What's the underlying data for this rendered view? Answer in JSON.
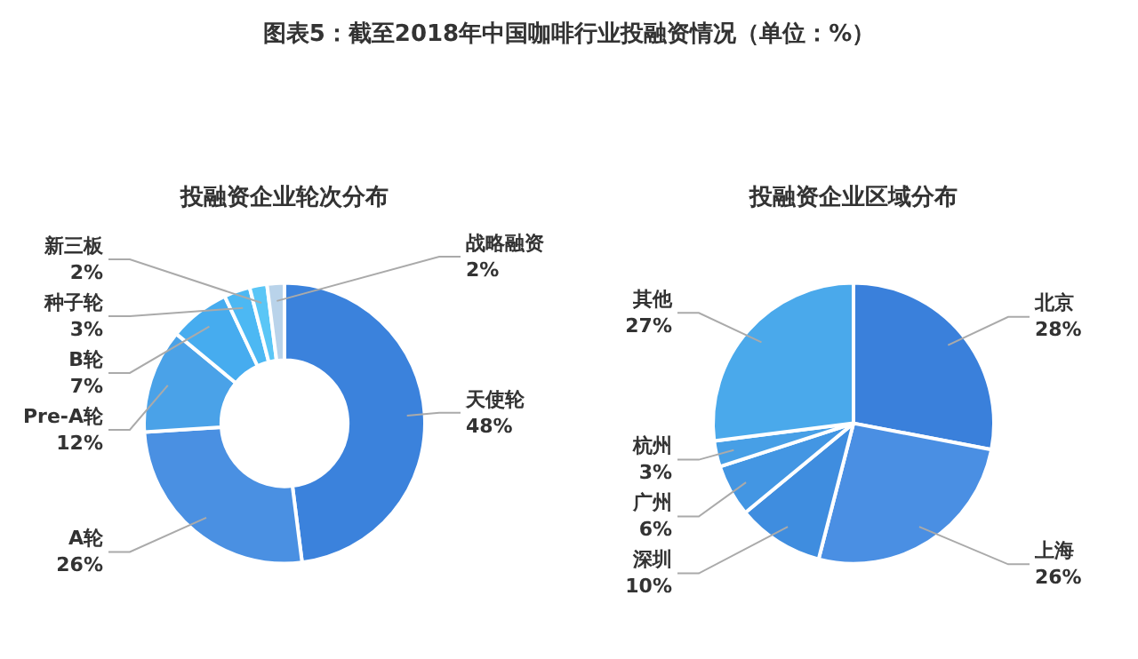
{
  "chart_data": [
    {
      "type": "donut",
      "title": "图表5：截至2018年中国咖啡行业投融资情况（单位：%）",
      "subtitle": "投融资企业轮次分布",
      "categories": [
        "天使轮",
        "A轮",
        "Pre-A轮",
        "B轮",
        "种子轮",
        "新三板",
        "战略融资"
      ],
      "values": [
        48,
        26,
        12,
        7,
        3,
        2,
        2
      ],
      "value_labels": [
        "48%",
        "26%",
        "12%",
        "7%",
        "3%",
        "2%",
        "2%"
      ],
      "colors": [
        "#3b82dc",
        "#4a90e2",
        "#4aa2e8",
        "#46acef",
        "#4cb8f3",
        "#5ac6f6",
        "#b9d3ea"
      ],
      "legend": false
    },
    {
      "type": "pie",
      "title": "投融资企业区域分布",
      "categories": [
        "北京",
        "上海",
        "深圳",
        "广州",
        "杭州",
        "其他"
      ],
      "values": [
        28,
        26,
        10,
        6,
        3,
        27
      ],
      "value_labels": [
        "28%",
        "26%",
        "10%",
        "6%",
        "3%",
        "27%"
      ],
      "colors": [
        "#3a80db",
        "#4a8fe3",
        "#3f8ddf",
        "#4396e3",
        "#479fe6",
        "#4aa9eb"
      ],
      "legend": false
    }
  ]
}
